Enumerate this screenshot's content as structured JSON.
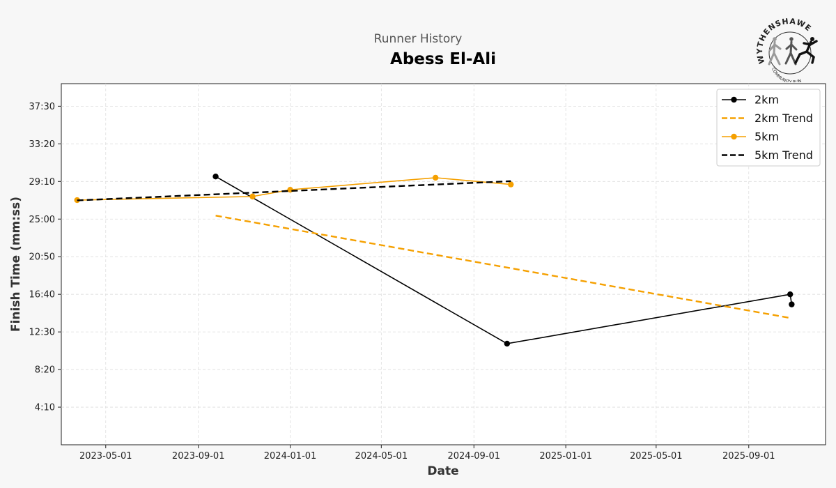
{
  "header": {
    "subtitle": "Runner History",
    "title": "Abess El-Ali"
  },
  "logo": {
    "top_text": "WYTHENSHAWE",
    "bottom_text": "COMMUNITY RUN"
  },
  "chart_data": {
    "type": "line",
    "title": "Abess El-Ali",
    "subtitle": "Runner History",
    "xlabel": "Date",
    "ylabel": "Finish Time (mm:ss)",
    "x_axis_type": "date",
    "xlim": [
      "2023-03-03",
      "2025-12-12"
    ],
    "ylim_seconds": [
      0,
      2400
    ],
    "x_ticks": [
      "2023-05-01",
      "2023-09-01",
      "2024-01-01",
      "2024-05-01",
      "2024-09-01",
      "2025-01-01",
      "2025-05-01",
      "2025-09-01"
    ],
    "y_ticks": [
      "4:10",
      "8:20",
      "12:30",
      "16:40",
      "20:50",
      "25:00",
      "29:10",
      "33:20",
      "37:30"
    ],
    "grid": true,
    "legend_position": "top-right",
    "series": [
      {
        "name": "2km",
        "color": "#000000",
        "style": "solid-markers",
        "points": [
          {
            "date": "2023-09-24",
            "time": "29:43"
          },
          {
            "date": "2024-10-15",
            "time": "11:12"
          },
          {
            "date": "2025-10-26",
            "time": "16:40"
          },
          {
            "date": "2025-10-28",
            "time": "15:33"
          }
        ]
      },
      {
        "name": "2km Trend",
        "color": "#f5a000",
        "style": "dashed",
        "points": [
          {
            "date": "2023-09-24",
            "time": "25:23"
          },
          {
            "date": "2025-10-28",
            "time": "14:01"
          }
        ]
      },
      {
        "name": "5km",
        "color": "#f5a000",
        "style": "solid-markers",
        "points": [
          {
            "date": "2023-03-24",
            "time": "27:06"
          },
          {
            "date": "2023-11-12",
            "time": "27:30"
          },
          {
            "date": "2024-01-01",
            "time": "28:15"
          },
          {
            "date": "2024-07-12",
            "time": "29:35"
          },
          {
            "date": "2024-10-20",
            "time": "28:50"
          }
        ]
      },
      {
        "name": "5km Trend",
        "color": "#000000",
        "style": "dashed",
        "points": [
          {
            "date": "2023-03-24",
            "time": "27:04"
          },
          {
            "date": "2024-10-20",
            "time": "29:12"
          }
        ]
      }
    ]
  }
}
